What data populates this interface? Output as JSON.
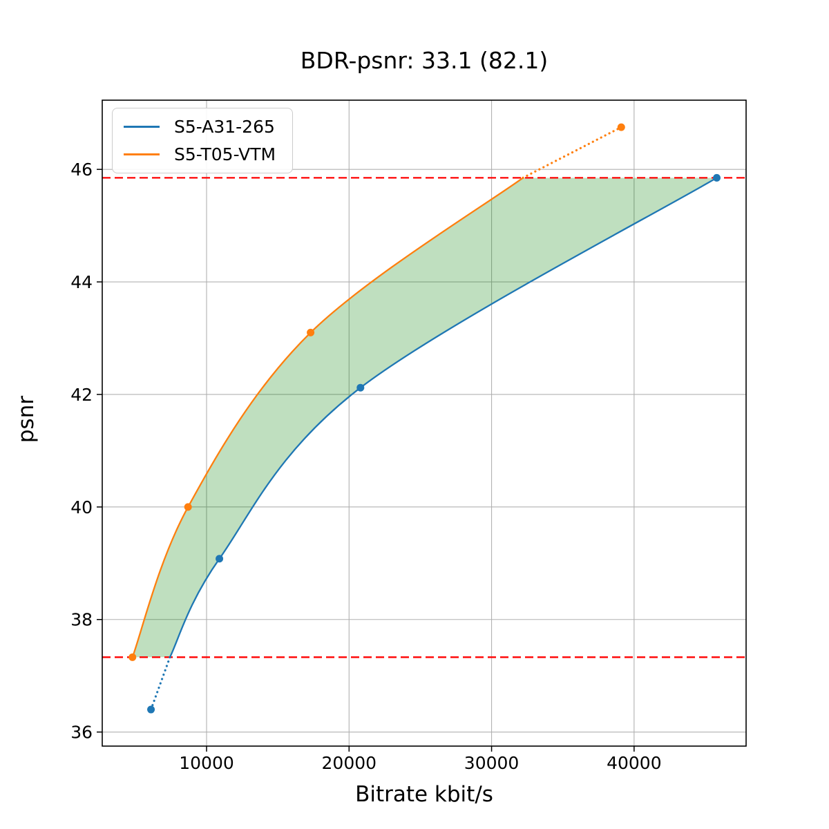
{
  "chart_data": {
    "type": "line",
    "title": "BDR-psnr: 33.1 (82.1)",
    "xlabel": "Bitrate kbit/s",
    "ylabel": "psnr",
    "xlim": [
      2680,
      47860
    ],
    "ylim": [
      35.75,
      47.23
    ],
    "xticks": [
      10000,
      20000,
      30000,
      40000
    ],
    "yticks": [
      36,
      38,
      40,
      42,
      44,
      46
    ],
    "grid": true,
    "grid_color": "#b0b0b0",
    "axis_color": "#000000",
    "legend_position": "upper-left",
    "series": [
      {
        "name": "S5-A31-265",
        "color": "#1f77b4",
        "points": [
          [
            6100,
            36.4
          ],
          [
            10900,
            39.08
          ],
          [
            20800,
            42.12
          ],
          [
            45800,
            45.85
          ]
        ],
        "solid_from": [
          7430,
          37.33
        ],
        "dotted_segment": "below-overlap"
      },
      {
        "name": "S5-T05-VTM",
        "color": "#ff7f0e",
        "points": [
          [
            4800,
            37.33
          ],
          [
            8700,
            40.0
          ],
          [
            17300,
            43.1
          ],
          [
            39100,
            46.75
          ]
        ],
        "solid_to": [
          32200,
          45.85
        ],
        "dotted_segment": "above-overlap"
      }
    ],
    "overlap_lines": {
      "color": "#ff0000",
      "style": "dashed",
      "y_low": 37.33,
      "y_high": 45.85
    },
    "shaded_region": {
      "color": "rgba(0, 128, 0, 0.25)"
    }
  }
}
